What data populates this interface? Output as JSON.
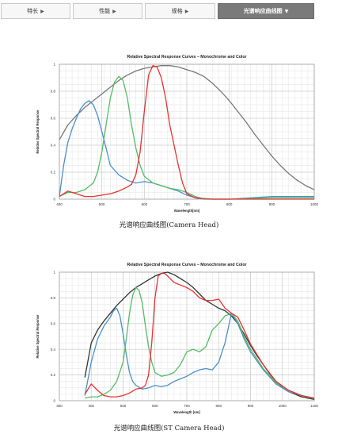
{
  "tabs": [
    {
      "label": "特长",
      "arrow": "▶",
      "active": false
    },
    {
      "label": "性能",
      "arrow": "▶",
      "active": false
    },
    {
      "label": "规格",
      "arrow": "▶",
      "active": false
    },
    {
      "label": "光谱响应曲线图",
      "arrow": "▼",
      "active": true
    }
  ],
  "chart1_caption": "光谱响应曲线图(Camera Head)",
  "chart2_caption": "光谱响应曲线图(ST Camera Head)",
  "chart_data": [
    {
      "type": "line",
      "title": "Relative Spectral Response Curves – Monochrome and Color",
      "xlabel": "Wavelength[nm]",
      "ylabel": "Relative Spectral Response",
      "xlim": [
        400,
        1000
      ],
      "ylim": [
        0,
        1
      ],
      "xticks": [
        400,
        500,
        600,
        700,
        800,
        900,
        1000
      ],
      "yticks": [
        0,
        0.2,
        0.4,
        0.6,
        0.8,
        1
      ],
      "xtick_labels": [
        "400",
        "500",
        "600",
        "700",
        "800",
        "900",
        "1000"
      ],
      "ytick_labels": [
        "0",
        "0.2",
        "0.4",
        "0.6",
        "0.8",
        "1"
      ],
      "grid": true,
      "series": [
        {
          "color": "#777777",
          "x": [
            400,
            420,
            440,
            460,
            480,
            500,
            520,
            540,
            560,
            580,
            600,
            620,
            640,
            660,
            680,
            700,
            720,
            740,
            760,
            780,
            800,
            820,
            840,
            860,
            880,
            900,
            920,
            940,
            960,
            980,
            1000
          ],
          "y": [
            0.44,
            0.55,
            0.62,
            0.68,
            0.73,
            0.78,
            0.83,
            0.88,
            0.92,
            0.95,
            0.97,
            0.98,
            0.99,
            0.99,
            0.98,
            0.96,
            0.94,
            0.91,
            0.86,
            0.8,
            0.73,
            0.65,
            0.57,
            0.48,
            0.4,
            0.32,
            0.25,
            0.19,
            0.14,
            0.1,
            0.07
          ]
        },
        {
          "color": "#4a90c8",
          "x": [
            400,
            410,
            420,
            430,
            440,
            450,
            460,
            470,
            480,
            490,
            500,
            510,
            520,
            540,
            560,
            580,
            600,
            620,
            640,
            660,
            680,
            700,
            720,
            740,
            800,
            900,
            1000
          ],
          "y": [
            0.02,
            0.25,
            0.42,
            0.52,
            0.6,
            0.67,
            0.71,
            0.73,
            0.7,
            0.62,
            0.5,
            0.38,
            0.25,
            0.18,
            0.14,
            0.12,
            0.13,
            0.12,
            0.1,
            0.08,
            0.06,
            0.03,
            0.01,
            0.0,
            0.0,
            0.02,
            0.02
          ]
        },
        {
          "color": "#55bb66",
          "x": [
            400,
            420,
            440,
            460,
            480,
            490,
            500,
            510,
            520,
            530,
            540,
            550,
            560,
            570,
            580,
            590,
            600,
            620,
            640,
            660,
            680,
            700,
            720,
            740,
            800,
            900,
            1000
          ],
          "y": [
            0.02,
            0.05,
            0.05,
            0.07,
            0.12,
            0.2,
            0.35,
            0.55,
            0.75,
            0.87,
            0.91,
            0.88,
            0.75,
            0.55,
            0.38,
            0.25,
            0.17,
            0.12,
            0.1,
            0.08,
            0.07,
            0.05,
            0.02,
            0.0,
            0.0,
            0.01,
            0.01
          ]
        },
        {
          "color": "#e53333",
          "x": [
            400,
            420,
            440,
            460,
            480,
            500,
            520,
            540,
            560,
            570,
            580,
            590,
            600,
            610,
            620,
            630,
            640,
            650,
            660,
            670,
            680,
            690,
            700,
            720,
            760,
            800,
            900,
            1000
          ],
          "y": [
            0.02,
            0.06,
            0.04,
            0.02,
            0.02,
            0.03,
            0.04,
            0.06,
            0.09,
            0.11,
            0.18,
            0.35,
            0.65,
            0.92,
            0.99,
            0.98,
            0.9,
            0.75,
            0.55,
            0.4,
            0.25,
            0.12,
            0.04,
            0.01,
            0.0,
            0.0,
            0.0,
            0.0
          ]
        }
      ]
    },
    {
      "type": "line",
      "title": "Relative Spectral Response Curves – Monochrome and Color",
      "xlabel": "Wavelength [nm]",
      "ylabel": "Relative Spectral Response",
      "xlim": [
        300,
        1100
      ],
      "ylim": [
        0,
        1
      ],
      "xticks": [
        300,
        400,
        500,
        600,
        700,
        800,
        900,
        1000,
        1100
      ],
      "yticks": [
        0,
        0.2,
        0.4,
        0.6,
        0.8,
        1
      ],
      "xtick_labels": [
        "300",
        "400",
        "500",
        "600",
        "700",
        "800",
        "900",
        "1000",
        "1100"
      ],
      "ytick_labels": [
        "0",
        "0.2",
        "0.4",
        "0.6",
        "0.8",
        "1"
      ],
      "grid": true,
      "series": [
        {
          "color": "#333333",
          "x": [
            380,
            400,
            420,
            440,
            460,
            480,
            500,
            520,
            540,
            560,
            580,
            600,
            620,
            640,
            660,
            680,
            700,
            720,
            740,
            760,
            780,
            800,
            820,
            840,
            860,
            880,
            900,
            920,
            940,
            960,
            980,
            1000,
            1020,
            1040,
            1060,
            1080,
            1100
          ],
          "y": [
            0.18,
            0.45,
            0.55,
            0.62,
            0.68,
            0.74,
            0.79,
            0.84,
            0.88,
            0.91,
            0.94,
            0.97,
            0.99,
            1.0,
            0.98,
            0.95,
            0.92,
            0.88,
            0.83,
            0.78,
            0.75,
            0.72,
            0.7,
            0.66,
            0.6,
            0.52,
            0.43,
            0.35,
            0.28,
            0.21,
            0.15,
            0.1,
            0.07,
            0.05,
            0.03,
            0.02,
            0.01
          ]
        },
        {
          "color": "#4a90c8",
          "x": [
            380,
            400,
            420,
            440,
            460,
            470,
            480,
            490,
            500,
            510,
            520,
            530,
            540,
            560,
            580,
            600,
            620,
            640,
            660,
            680,
            700,
            720,
            740,
            760,
            780,
            800,
            820,
            840,
            860,
            880,
            900,
            940,
            980,
            1020,
            1060,
            1100
          ],
          "y": [
            0.04,
            0.3,
            0.48,
            0.58,
            0.65,
            0.7,
            0.72,
            0.66,
            0.52,
            0.36,
            0.22,
            0.15,
            0.12,
            0.09,
            0.1,
            0.12,
            0.11,
            0.12,
            0.15,
            0.17,
            0.19,
            0.22,
            0.24,
            0.25,
            0.24,
            0.3,
            0.45,
            0.68,
            0.6,
            0.48,
            0.38,
            0.24,
            0.13,
            0.07,
            0.04,
            0.02
          ]
        },
        {
          "color": "#55bb66",
          "x": [
            380,
            400,
            420,
            440,
            460,
            480,
            500,
            510,
            520,
            530,
            540,
            550,
            560,
            570,
            580,
            590,
            600,
            620,
            640,
            660,
            680,
            700,
            720,
            740,
            760,
            780,
            800,
            820,
            840,
            860,
            880,
            900,
            940,
            980,
            1020,
            1060,
            1100
          ],
          "y": [
            0.02,
            0.03,
            0.03,
            0.05,
            0.08,
            0.15,
            0.3,
            0.48,
            0.68,
            0.82,
            0.88,
            0.86,
            0.76,
            0.58,
            0.42,
            0.3,
            0.22,
            0.19,
            0.2,
            0.22,
            0.28,
            0.38,
            0.4,
            0.38,
            0.42,
            0.55,
            0.6,
            0.66,
            0.68,
            0.62,
            0.5,
            0.4,
            0.25,
            0.14,
            0.08,
            0.04,
            0.02
          ]
        },
        {
          "color": "#e53333",
          "x": [
            380,
            400,
            420,
            440,
            460,
            480,
            500,
            520,
            540,
            560,
            570,
            580,
            590,
            600,
            610,
            620,
            630,
            640,
            660,
            680,
            700,
            720,
            740,
            760,
            780,
            800,
            820,
            840,
            860,
            880,
            900,
            940,
            980,
            1020,
            1060,
            1100
          ],
          "y": [
            0.05,
            0.13,
            0.08,
            0.04,
            0.03,
            0.03,
            0.04,
            0.06,
            0.09,
            0.1,
            0.12,
            0.2,
            0.45,
            0.8,
            0.97,
            0.99,
            0.99,
            0.97,
            0.92,
            0.9,
            0.88,
            0.85,
            0.8,
            0.78,
            0.78,
            0.79,
            0.72,
            0.68,
            0.65,
            0.55,
            0.44,
            0.28,
            0.15,
            0.08,
            0.04,
            0.02
          ]
        }
      ]
    }
  ]
}
